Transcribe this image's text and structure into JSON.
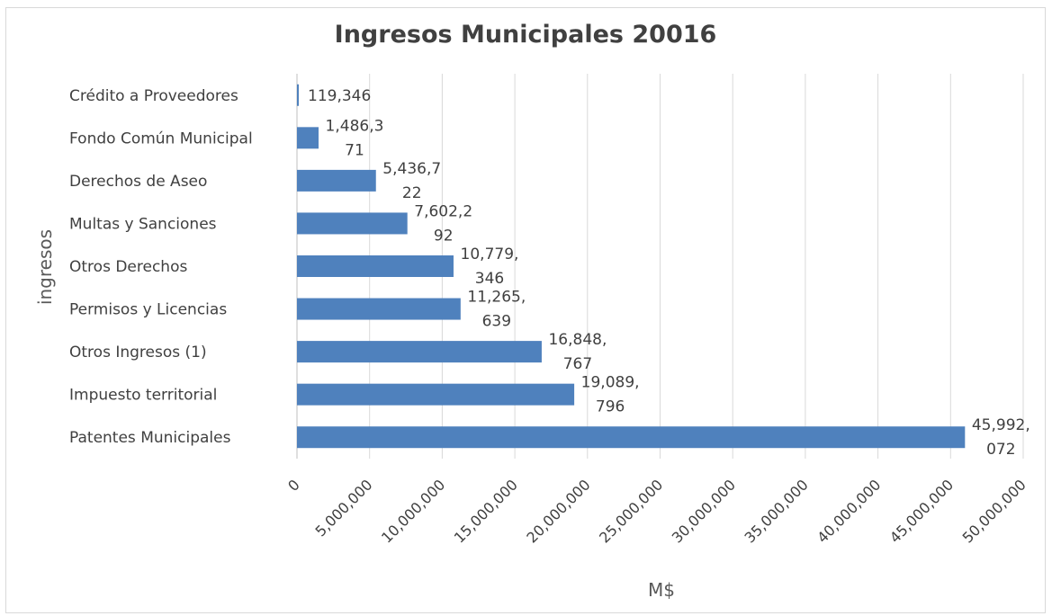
{
  "chart_data": {
    "type": "bar",
    "orientation": "horizontal",
    "title": "Ingresos Municipales 20016",
    "xlabel": "M$",
    "ylabel": "ingresos",
    "categories": [
      "Crédito a Proveedores",
      "Fondo Común Municipal",
      "Derechos de Aseo",
      "Multas y Sanciones",
      "Otros Derechos",
      "Permisos y Licencias",
      "Otros Ingresos (1)",
      "Impuesto territorial",
      "Patentes Municipales"
    ],
    "values": [
      119346,
      1486371,
      5436722,
      7602292,
      10779346,
      11265639,
      16848767,
      19089796,
      45992072
    ],
    "data_labels": [
      [
        "119,346"
      ],
      [
        "1,486,3",
        "71"
      ],
      [
        "5,436,7",
        "22"
      ],
      [
        "7,602,2",
        "92"
      ],
      [
        "10,779,",
        "346"
      ],
      [
        "11,265,",
        "639"
      ],
      [
        "16,848,",
        "767"
      ],
      [
        "19,089,",
        "796"
      ],
      [
        "45,992,",
        "072"
      ]
    ],
    "xlim": [
      0,
      50000000
    ],
    "x_ticks": [
      0,
      5000000,
      10000000,
      15000000,
      20000000,
      25000000,
      30000000,
      35000000,
      40000000,
      45000000,
      50000000
    ],
    "x_tick_labels": [
      "0",
      "5,000,000",
      "10,000,000",
      "15,000,000",
      "20,000,000",
      "25,000,000",
      "30,000,000",
      "35,000,000",
      "40,000,000",
      "45,000,000",
      "50,000,000"
    ],
    "grid": "vertical",
    "legend": "none",
    "colors": {
      "bar": "#4f81bd",
      "grid": "#d9d9d9",
      "text": "#404040"
    }
  }
}
